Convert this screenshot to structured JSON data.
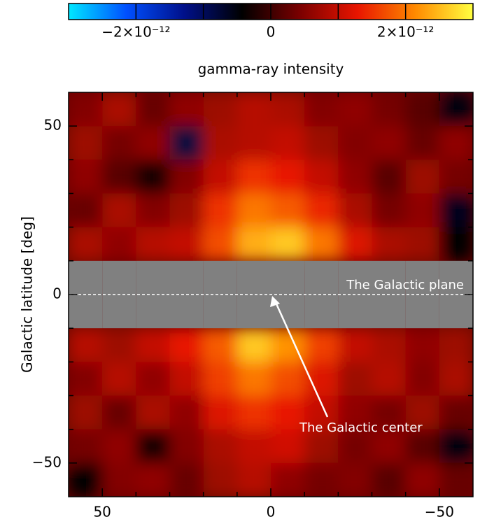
{
  "chart_data": {
    "type": "heatmap",
    "ylabel": "Galactic latitude [deg]",
    "colorbar_label": "gamma-ray intensity",
    "annotations": [
      "The Galactic plane",
      "The Galactic center"
    ],
    "colormap": [
      "#00e8ff",
      "#0050ff",
      "#00108a",
      "#000000",
      "#7a0000",
      "#e81500",
      "#ff8a00",
      "#ffff40"
    ],
    "null_color": "#808080",
    "clim": [
      -3e-12,
      3e-12
    ],
    "cticks": [
      {
        "value": -2e-12,
        "label": "−2×10⁻¹²"
      },
      {
        "value": -1e-12,
        "label": null
      },
      0,
      {
        "value": 1e-12,
        "label": null
      },
      {
        "value": 2e-12,
        "label": "2×10⁻¹²"
      }
    ],
    "xlim": [
      60,
      -60
    ],
    "ylim": [
      -60,
      60
    ],
    "xticks": [
      50,
      {
        "value": 40,
        "label": null
      },
      {
        "value": 30,
        "label": null
      },
      {
        "value": 20,
        "label": null
      },
      {
        "value": 10,
        "label": null
      },
      0,
      {
        "value": -10,
        "label": null
      },
      {
        "value": -20,
        "label": null
      },
      {
        "value": -30,
        "label": null
      },
      {
        "value": -40,
        "label": null
      },
      {
        "value": -50,
        "label": "−50"
      }
    ],
    "yticks": [
      50,
      {
        "value": 40,
        "label": null
      },
      {
        "value": 30,
        "label": null
      },
      {
        "value": 20,
        "label": null
      },
      {
        "value": 10,
        "label": null
      },
      0,
      {
        "value": -10,
        "label": null
      },
      {
        "value": -20,
        "label": null
      },
      {
        "value": -30,
        "label": null
      },
      {
        "value": -40,
        "label": null
      },
      {
        "value": -50,
        "label": "−50"
      }
    ],
    "xbins": [
      60,
      50,
      40,
      30,
      20,
      10,
      0,
      -10,
      -20,
      -30,
      -40,
      -50,
      -60
    ],
    "ybins": [
      60,
      50,
      40,
      30,
      20,
      10,
      0,
      -10,
      -20,
      -30,
      -40,
      -50,
      -60
    ],
    "values": [
      [
        5e-13,
        8e-13,
        3e-13,
        6e-13,
        7e-13,
        9e-13,
        8e-13,
        5e-13,
        6e-13,
        4e-13,
        2e-13,
        -5e-13
      ],
      [
        7e-13,
        4e-13,
        6e-13,
        -8e-13,
        8e-13,
        9e-13,
        1e-12,
        7e-13,
        5e-13,
        6e-13,
        3e-13,
        6e-13
      ],
      [
        6e-13,
        2e-13,
        -3e-13,
        5e-13,
        1e-12,
        1.5e-12,
        1.3e-12,
        1e-12,
        6e-13,
        2e-13,
        7e-13,
        4e-13
      ],
      [
        3e-13,
        8e-13,
        5e-13,
        7e-13,
        1.5e-12,
        2e-12,
        1.8e-12,
        1.4e-12,
        8e-13,
        4e-13,
        6e-13,
        -6e-13
      ],
      [
        8e-13,
        6e-13,
        9e-13,
        1e-12,
        1.7e-12,
        2.4e-12,
        2.6e-12,
        2e-12,
        1.2e-12,
        8e-13,
        7e-13,
        -4e-13
      ],
      [
        null,
        null,
        null,
        null,
        null,
        null,
        null,
        null,
        null,
        null,
        null,
        null
      ],
      [
        null,
        null,
        null,
        null,
        null,
        null,
        null,
        null,
        null,
        null,
        null,
        null
      ],
      [
        9e-13,
        7e-13,
        1e-12,
        1.3e-12,
        1.8e-12,
        2.6e-12,
        2.2e-12,
        1.6e-12,
        1e-12,
        8e-13,
        6e-13,
        7e-13
      ],
      [
        5e-13,
        9e-13,
        6e-13,
        1e-12,
        1.6e-12,
        2e-12,
        1.7e-12,
        1.2e-12,
        7e-13,
        9e-13,
        5e-13,
        8e-13
      ],
      [
        7e-13,
        3e-13,
        8e-13,
        6e-13,
        1.2e-12,
        1.5e-12,
        1.3e-12,
        1e-12,
        6e-13,
        4e-13,
        7e-13,
        3e-13
      ],
      [
        4e-13,
        6e-13,
        -3e-13,
        5e-13,
        8e-13,
        1e-12,
        1.1e-12,
        7e-13,
        4e-13,
        6e-13,
        2e-13,
        -5e-13
      ],
      [
        -4e-13,
        5e-13,
        6e-13,
        3e-13,
        7e-13,
        9e-13,
        6e-13,
        4e-13,
        5e-13,
        2e-13,
        6e-13,
        3e-13
      ]
    ]
  }
}
